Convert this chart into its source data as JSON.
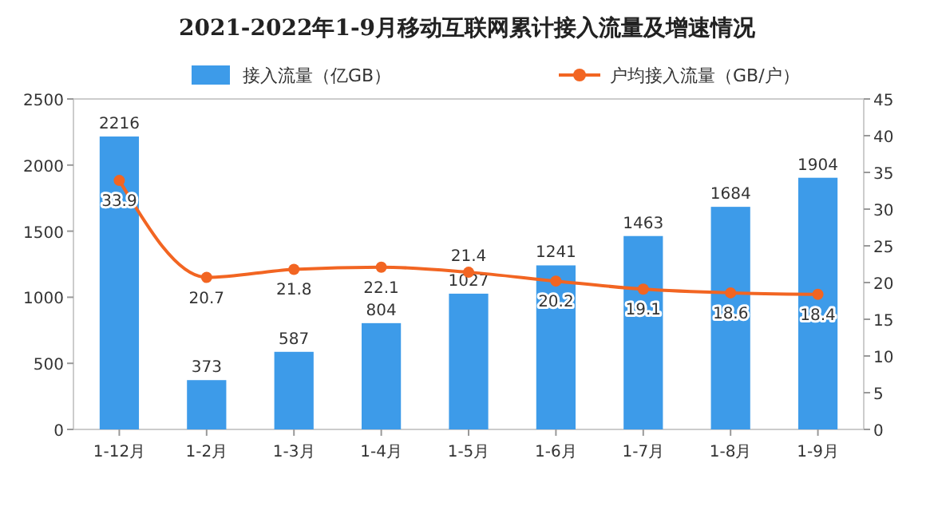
{
  "chart_data": {
    "type": "bar",
    "title": "2021-2022年1-9月移动互联网累计接入流量及增速情况",
    "categories": [
      "1-12月",
      "1-2月",
      "1-3月",
      "1-4月",
      "1-5月",
      "1-6月",
      "1-7月",
      "1-8月",
      "1-9月"
    ],
    "series": [
      {
        "name": "接入流量（亿GB）",
        "color": "#3d9be9",
        "values": [
          2216,
          373,
          587,
          804,
          1027,
          1241,
          1463,
          1684,
          1904
        ]
      },
      {
        "name": "户均接入流量（GB/户）",
        "type": "line",
        "axis": "y2",
        "color": "#f26522",
        "values": [
          33.9,
          20.7,
          21.8,
          22.1,
          21.4,
          20.2,
          19.1,
          18.6,
          18.4
        ]
      }
    ],
    "ylim": [
      0,
      2500
    ],
    "yticks": [
      0,
      500,
      1000,
      1500,
      2000,
      2500
    ],
    "y2lim": [
      0,
      45
    ],
    "y2ticks": [
      0,
      5,
      10,
      15,
      20,
      25,
      30,
      35,
      40,
      45
    ],
    "data_labels": true,
    "legend": "top",
    "marker": "circle",
    "grid": false
  }
}
